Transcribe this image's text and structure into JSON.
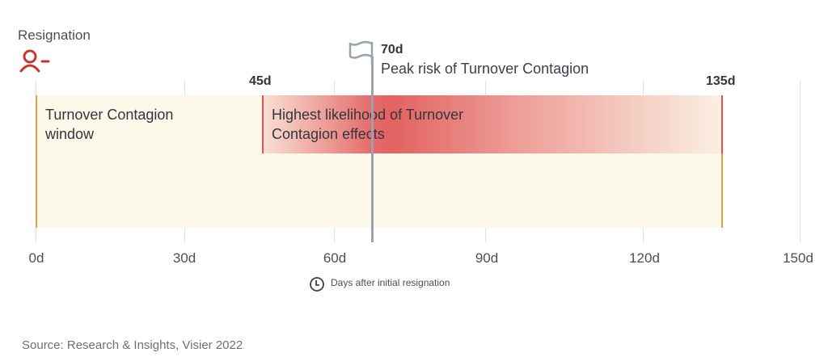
{
  "header": {
    "label": "Resignation",
    "icon": "user-minus-icon",
    "icon_color": "#c8372d"
  },
  "window_label": "Turnover Contagion window",
  "highlight": {
    "start_label": "45d",
    "end_label": "135d",
    "text": "Highest likelihood of Turnover Contagion effects",
    "color": "#e05252"
  },
  "peak": {
    "day_label": "70d",
    "text": "Peak risk of Turnover Contagion",
    "icon": "flag-icon"
  },
  "axis": {
    "ticks": [
      "0d",
      "30d",
      "60d",
      "90d",
      "120d",
      "150d"
    ],
    "caption": "Days after initial resignation",
    "caption_icon": "clock-icon"
  },
  "source": "Source: Research & Insights, Visier 2022",
  "colors": {
    "window_fill": "#fcf8ea",
    "window_border": "#d4a73a",
    "gridline": "#dde3ea"
  }
}
